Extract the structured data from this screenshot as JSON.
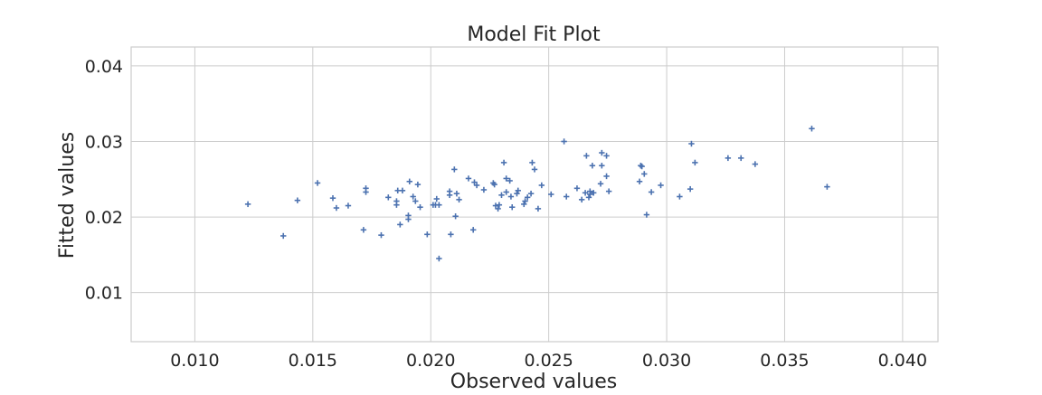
{
  "chart_data": {
    "type": "scatter",
    "title": "Model Fit Plot",
    "xlabel": "Observed values",
    "ylabel": "Fitted values",
    "xlim": [
      0.0073,
      0.0415
    ],
    "ylim": [
      0.0035,
      0.0425
    ],
    "xticks": [
      0.01,
      0.015,
      0.02,
      0.025,
      0.03,
      0.035,
      0.04
    ],
    "yticks": [
      0.01,
      0.02,
      0.03,
      0.04
    ],
    "xtick_labels": [
      "0.010",
      "0.015",
      "0.020",
      "0.025",
      "0.030",
      "0.035",
      "0.040"
    ],
    "ytick_labels": [
      "0.01",
      "0.02",
      "0.03",
      "0.04"
    ],
    "grid": true,
    "marker": "plus",
    "color": "#4c72b0",
    "series": [
      {
        "x": [
          0.01225,
          0.01375,
          0.01435,
          0.0152,
          0.01585,
          0.016,
          0.0165,
          0.01715,
          0.01725,
          0.01725,
          0.0179,
          0.0182,
          0.01855,
          0.01855,
          0.0186,
          0.0187,
          0.0188,
          0.01905,
          0.01905,
          0.0191,
          0.01925,
          0.01935,
          0.01945,
          0.01955,
          0.01985,
          0.0201,
          0.02025,
          0.02035,
          0.0202,
          0.02035,
          0.0208,
          0.0208,
          0.02085,
          0.021,
          0.02105,
          0.0211,
          0.0212,
          0.0216,
          0.0218,
          0.02185,
          0.02195,
          0.02225,
          0.02265,
          0.0227,
          0.02275,
          0.02285,
          0.0229,
          0.023,
          0.0231,
          0.0232,
          0.0232,
          0.02335,
          0.0234,
          0.02345,
          0.02365,
          0.0237,
          0.02395,
          0.024,
          0.0241,
          0.02425,
          0.0243,
          0.0244,
          0.02455,
          0.0247,
          0.0251,
          0.02565,
          0.02575,
          0.0262,
          0.0264,
          0.02655,
          0.0266,
          0.0267,
          0.02675,
          0.02675,
          0.02685,
          0.0269,
          0.0272,
          0.02725,
          0.02725,
          0.02745,
          0.02745,
          0.02755,
          0.02885,
          0.0289,
          0.02895,
          0.02905,
          0.02915,
          0.02935,
          0.02975,
          0.03055,
          0.031,
          0.03105,
          0.0312,
          0.0326,
          0.03315,
          0.03375,
          0.03615,
          0.0368
        ],
        "y": [
          0.0217,
          0.0175,
          0.0222,
          0.0245,
          0.0225,
          0.0212,
          0.0215,
          0.0183,
          0.0233,
          0.0238,
          0.0176,
          0.0226,
          0.0216,
          0.0221,
          0.0235,
          0.019,
          0.0235,
          0.0197,
          0.0202,
          0.0247,
          0.0227,
          0.0221,
          0.0243,
          0.0213,
          0.0177,
          0.0216,
          0.0224,
          0.0145,
          0.0216,
          0.0216,
          0.0234,
          0.0229,
          0.0177,
          0.0263,
          0.0201,
          0.0231,
          0.0223,
          0.0251,
          0.0183,
          0.0246,
          0.0242,
          0.0236,
          0.0245,
          0.0243,
          0.0215,
          0.0211,
          0.0216,
          0.0229,
          0.0272,
          0.0251,
          0.0233,
          0.0248,
          0.0227,
          0.0213,
          0.0231,
          0.0235,
          0.0217,
          0.0221,
          0.0226,
          0.0231,
          0.0272,
          0.0263,
          0.0211,
          0.0242,
          0.023,
          0.03,
          0.0227,
          0.0238,
          0.0223,
          0.0232,
          0.0281,
          0.0226,
          0.023,
          0.0234,
          0.0268,
          0.0232,
          0.0244,
          0.0285,
          0.0268,
          0.0281,
          0.0254,
          0.0234,
          0.0247,
          0.0268,
          0.0267,
          0.0257,
          0.0203,
          0.0233,
          0.0242,
          0.0227,
          0.0237,
          0.0297,
          0.0272,
          0.0278,
          0.0278,
          0.027,
          0.0317,
          0.024
        ]
      }
    ]
  }
}
